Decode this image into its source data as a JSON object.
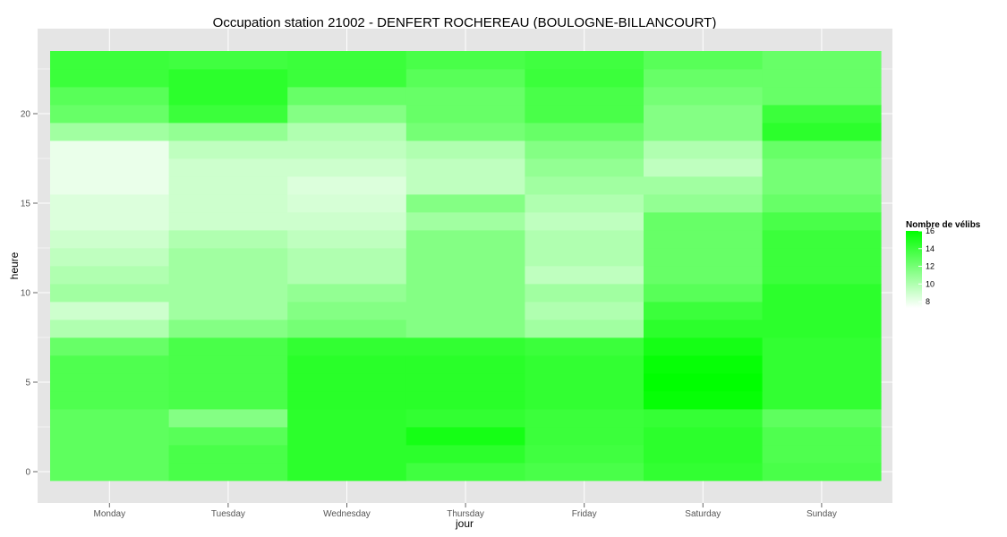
{
  "chart_data": {
    "type": "heatmap",
    "title": "Occupation station 21002 - DENFERT ROCHEREAU (BOULOGNE-BILLANCOURT)",
    "xlabel": "jour",
    "ylabel": "heure",
    "x": [
      "Monday",
      "Tuesday",
      "Wednesday",
      "Thursday",
      "Friday",
      "Saturday",
      "Sunday"
    ],
    "y": [
      0,
      1,
      2,
      3,
      4,
      5,
      6,
      7,
      8,
      9,
      10,
      11,
      12,
      13,
      14,
      15,
      16,
      17,
      18,
      19,
      20,
      21,
      22,
      23
    ],
    "y_ticks": [
      0,
      5,
      10,
      15,
      20
    ],
    "ylim": [
      -0.5,
      23.5
    ],
    "values": [
      [
        12.8,
        13.5,
        14.5,
        13.8,
        13.5,
        14.3,
        13.5
      ],
      [
        12.8,
        13.5,
        14.5,
        14.5,
        13.8,
        14.5,
        13.3
      ],
      [
        12.8,
        13.0,
        14.5,
        15.3,
        14.0,
        14.5,
        13.3
      ],
      [
        12.8,
        11.5,
        14.5,
        14.3,
        14.0,
        14.2,
        12.8
      ],
      [
        13.3,
        13.5,
        14.6,
        14.6,
        14.3,
        15.8,
        14.3
      ],
      [
        13.3,
        13.5,
        14.6,
        14.6,
        14.3,
        16.0,
        14.3
      ],
      [
        13.3,
        13.5,
        14.6,
        14.6,
        14.3,
        15.8,
        14.3
      ],
      [
        12.5,
        13.5,
        14.3,
        14.3,
        14.0,
        15.3,
        14.3
      ],
      [
        10.0,
        11.5,
        12.0,
        11.5,
        10.5,
        14.5,
        14.5
      ],
      [
        9.0,
        10.5,
        11.5,
        11.5,
        10.0,
        14.0,
        14.5
      ],
      [
        10.5,
        10.5,
        11.0,
        11.5,
        10.5,
        13.0,
        14.5
      ],
      [
        10.0,
        10.5,
        10.0,
        11.5,
        9.5,
        12.5,
        14.0
      ],
      [
        9.5,
        10.5,
        10.0,
        11.5,
        10.0,
        12.5,
        14.0
      ],
      [
        9.0,
        10.0,
        9.5,
        11.5,
        10.0,
        12.5,
        14.0
      ],
      [
        8.5,
        9.0,
        9.0,
        10.5,
        9.5,
        12.5,
        13.5
      ],
      [
        8.5,
        9.0,
        8.7,
        11.5,
        10.0,
        11.0,
        12.5
      ],
      [
        8.0,
        9.0,
        8.5,
        9.5,
        10.5,
        10.5,
        12.0
      ],
      [
        8.0,
        9.0,
        9.0,
        9.5,
        11.0,
        9.5,
        12.0
      ],
      [
        8.0,
        9.5,
        9.5,
        10.0,
        11.5,
        10.0,
        12.5
      ],
      [
        10.5,
        11.0,
        10.0,
        12.0,
        12.5,
        11.5,
        14.5
      ],
      [
        12.5,
        14.0,
        11.5,
        12.5,
        13.5,
        11.5,
        14.0
      ],
      [
        13.0,
        14.5,
        12.5,
        12.5,
        13.5,
        12.0,
        12.5
      ],
      [
        14.0,
        14.5,
        14.0,
        13.0,
        14.0,
        12.5,
        12.5
      ],
      [
        14.0,
        13.8,
        14.0,
        13.5,
        13.8,
        13.0,
        12.5
      ]
    ],
    "scale": {
      "min": 7.3,
      "max": 16.0,
      "low_color": "#ffffff",
      "high_color": "#00ff00"
    },
    "legend": {
      "title": "Nombre de vélibs",
      "breaks": [
        8,
        10,
        12,
        14,
        16
      ],
      "position": "right"
    },
    "colors": {
      "panel_background": "#e5e5e5",
      "grid": "#ffffff"
    },
    "grid": true
  }
}
